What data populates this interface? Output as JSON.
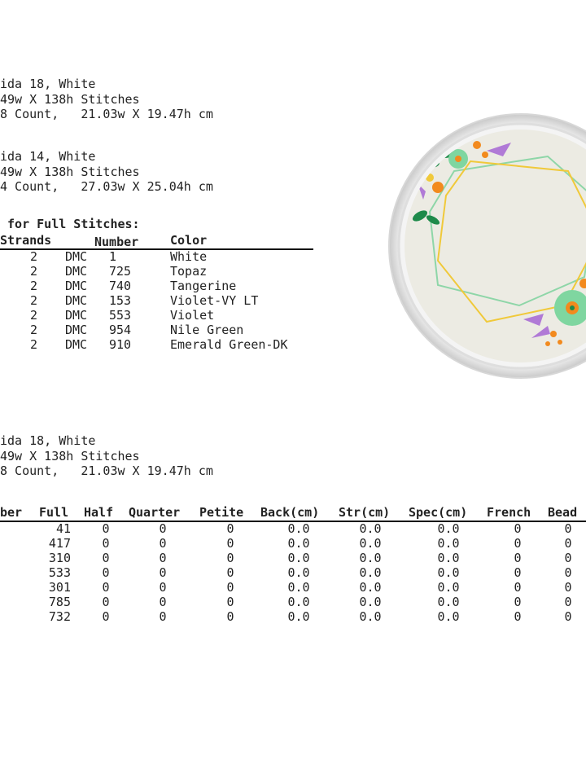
{
  "block1": {
    "fabric": "ida 18, White",
    "stitches": "49w X 138h Stitches",
    "size": "8 Count,   21.03w X 19.47h cm"
  },
  "block2": {
    "fabric": "ida 14, White",
    "stitches": "49w X 138h Stitches",
    "size": "4 Count,   27.03w X 25.04h cm"
  },
  "floss": {
    "title": " for Full Stitches:",
    "headers": {
      "strands": "Strands",
      "number": "Number",
      "color": "Color"
    },
    "rows": [
      {
        "strands": "2",
        "brand": "DMC",
        "number": "1",
        "color": "White"
      },
      {
        "strands": "2",
        "brand": "DMC",
        "number": "725",
        "color": "Topaz"
      },
      {
        "strands": "2",
        "brand": "DMC",
        "number": "740",
        "color": "Tangerine"
      },
      {
        "strands": "2",
        "brand": "DMC",
        "number": "153",
        "color": "Violet-VY LT"
      },
      {
        "strands": "2",
        "brand": "DMC",
        "number": "553",
        "color": "Violet"
      },
      {
        "strands": "2",
        "brand": "DMC",
        "number": "954",
        "color": "Nile Green"
      },
      {
        "strands": "2",
        "brand": "DMC",
        "number": "910",
        "color": "Emerald Green-DK"
      }
    ]
  },
  "block3": {
    "fabric": "ida 18, White",
    "stitches": "49w X 138h Stitches",
    "size": "8 Count,   21.03w X 19.47h cm"
  },
  "counts": {
    "headers": {
      "number": "ber",
      "full": "Full",
      "half": "Half",
      "quarter": "Quarter",
      "petite": "Petite",
      "back": "Back(cm)",
      "str": "Str(cm)",
      "spec": "Spec(cm)",
      "french": "French",
      "bead": "Bead"
    },
    "rows": [
      {
        "full": "41",
        "half": "0",
        "quarter": "0",
        "petite": "0",
        "back": "0.0",
        "str": "0.0",
        "spec": "0.0",
        "french": "0",
        "bead": "0"
      },
      {
        "full": "417",
        "half": "0",
        "quarter": "0",
        "petite": "0",
        "back": "0.0",
        "str": "0.0",
        "spec": "0.0",
        "french": "0",
        "bead": "0"
      },
      {
        "full": "310",
        "half": "0",
        "quarter": "0",
        "petite": "0",
        "back": "0.0",
        "str": "0.0",
        "spec": "0.0",
        "french": "0",
        "bead": "0"
      },
      {
        "full": "533",
        "half": "0",
        "quarter": "0",
        "petite": "0",
        "back": "0.0",
        "str": "0.0",
        "spec": "0.0",
        "french": "0",
        "bead": "0"
      },
      {
        "full": "301",
        "half": "0",
        "quarter": "0",
        "petite": "0",
        "back": "0.0",
        "str": "0.0",
        "spec": "0.0",
        "french": "0",
        "bead": "0"
      },
      {
        "full": "785",
        "half": "0",
        "quarter": "0",
        "petite": "0",
        "back": "0.0",
        "str": "0.0",
        "spec": "0.0",
        "french": "0",
        "bead": "0"
      },
      {
        "full": "732",
        "half": "0",
        "quarter": "0",
        "petite": "0",
        "back": "0.0",
        "str": "0.0",
        "spec": "0.0",
        "french": "0",
        "bead": "0"
      }
    ]
  },
  "preview": {
    "fabric_color": "#ecebe3",
    "hoop_color": "#f7f7f7",
    "frame_gold": "#f0c93a",
    "frame_green": "#8ed6a8",
    "violet": "#b07ad6",
    "tangerine": "#f28a1e",
    "emerald": "#1e8a4a",
    "nile": "#7fd6a0"
  }
}
